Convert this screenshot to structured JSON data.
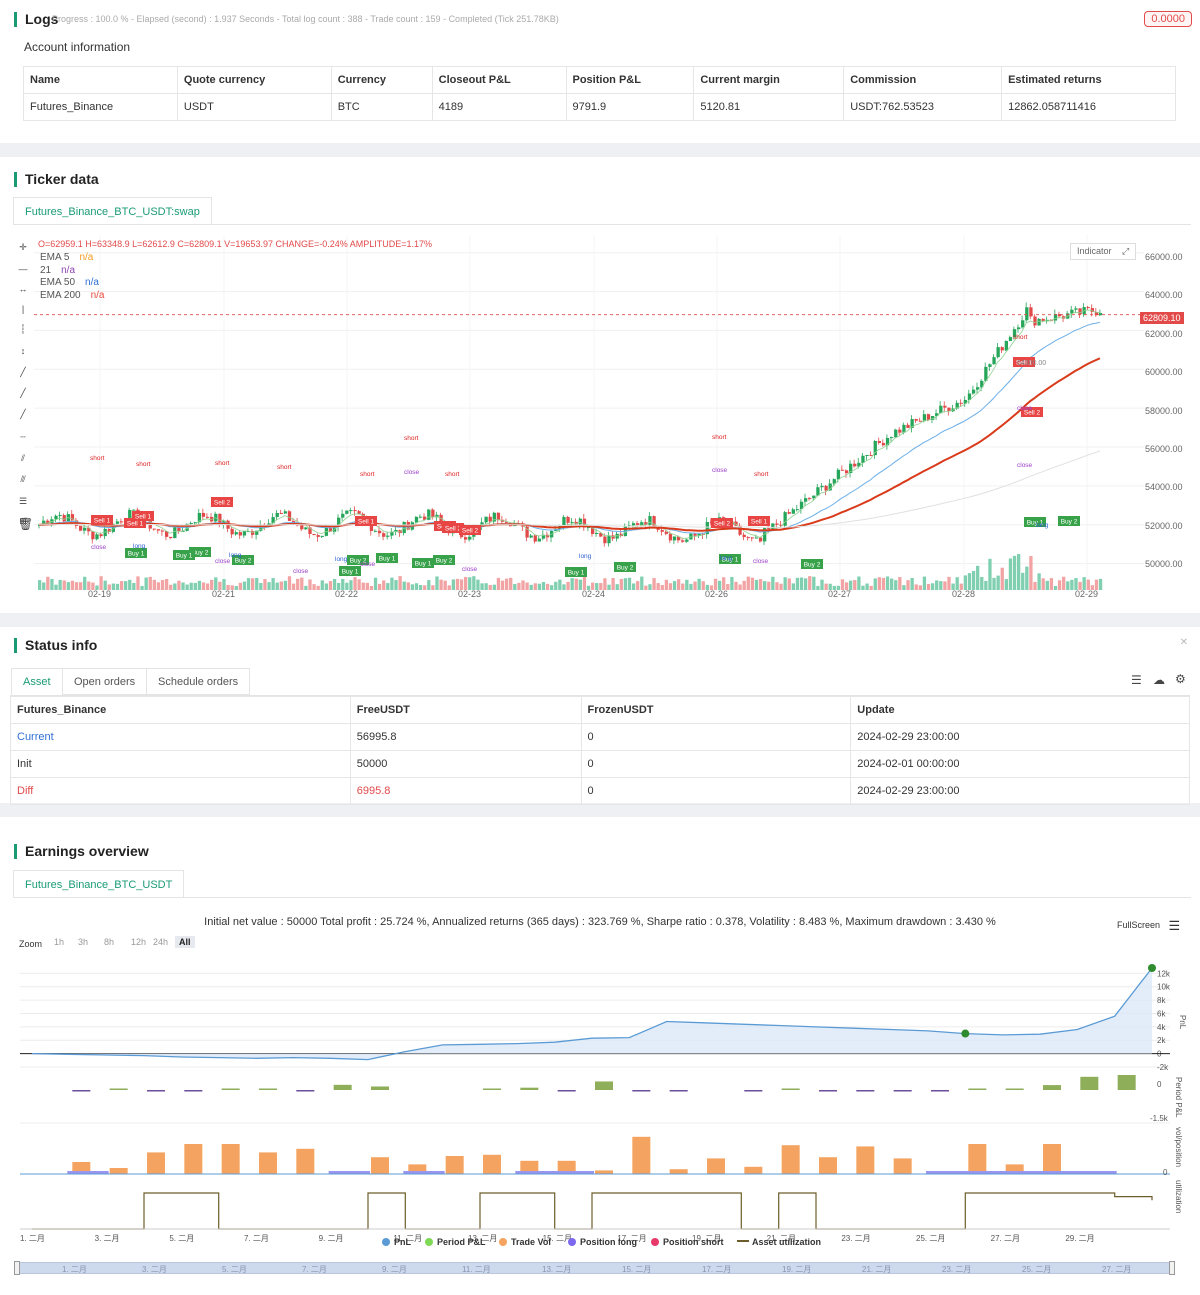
{
  "logs": {
    "title": "Logs",
    "status": "Progress : 100.0 % - Elapsed (second) : 1.937 Seconds - Total log count : 388 - Trade count : 159 - Completed (Tick 251.78KB)",
    "badge": "0.0000",
    "account_title": "Account information",
    "columns": [
      "Name",
      "Quote currency",
      "Currency",
      "Closeout P&L",
      "Position P&L",
      "Current margin",
      "Commission",
      "Estimated returns"
    ],
    "row": [
      "Futures_Binance",
      "USDT",
      "BTC",
      "4189",
      "9791.9",
      "5120.81",
      "USDT:762.53523",
      "12862.058711416"
    ]
  },
  "ticker": {
    "title": "Ticker data",
    "tab": "Futures_Binance_BTC_USDT:swap",
    "ohlc": "O=62959.1 H=63348.9 L=62612.9 C=62809.1 V=19653.97 CHANGE=-0.24% AMPLITUDE=1.17%",
    "indicators": [
      {
        "name": "EMA 5",
        "value": "n/a",
        "color": "#f29b1d"
      },
      {
        "name": "21",
        "value": "n/a",
        "color": "#8e44ad"
      },
      {
        "name": "EMA 50",
        "value": "n/a",
        "color": "#2f6fd6"
      },
      {
        "name": "EMA 200",
        "value": "n/a",
        "color": "#e74c3c"
      }
    ],
    "indicator_button": "Indicator",
    "price_axis": [
      "66000.00",
      "64000.00",
      "62000.00",
      "60000.00",
      "58000.00",
      "56000.00",
      "54000.00",
      "52000.00",
      "50000.00"
    ],
    "last_price": "62809.10",
    "peak_label": "64300.00",
    "x_axis": [
      "02-19",
      "02-21",
      "02-22",
      "02-23",
      "02-24",
      "02-26",
      "02-27",
      "02-28",
      "02-29"
    ],
    "marker_labels": {
      "short": "short",
      "long": "long",
      "close": "close",
      "sell1": "Sell 1",
      "sell2": "Sell 2",
      "buy1": "Buy 1",
      "buy2": "Buy 2",
      "one": "1"
    }
  },
  "status": {
    "title": "Status info",
    "tabs": [
      "Asset",
      "Open orders",
      "Schedule orders"
    ],
    "columns": [
      "Futures_Binance",
      "FreeUSDT",
      "FrozenUSDT",
      "Update"
    ],
    "rows": [
      [
        "Current",
        "56995.8",
        "0",
        "2024-02-29 23:00:00"
      ],
      [
        "Init",
        "50000",
        "0",
        "2024-02-01 00:00:00"
      ],
      [
        "Diff",
        "6995.8",
        "0",
        "2024-02-29 23:00:00"
      ]
    ]
  },
  "earnings": {
    "title": "Earnings overview",
    "tab": "Futures_Binance_BTC_USDT",
    "summary": "Initial net value : 50000 Total profit : 25.724 %, Annualized returns (365 days) : 323.769 %, Sharpe ratio : 0.378, Volatility : 8.483 %, Maximum drawdown : 3.430 %",
    "fullscreen": "FullScreen",
    "zoom_label": "Zoom",
    "zoom_options": [
      "1h",
      "3h",
      "8h",
      "12h",
      "24h",
      "All"
    ],
    "zoom_selected": "All",
    "pnl_axis": [
      "12k",
      "10k",
      "8k",
      "6k",
      "4k",
      "2k",
      "0",
      "-2k"
    ],
    "pnl_title": "PnL",
    "period_axis": [
      "0",
      "-1.5k"
    ],
    "period_title": "Period P&L",
    "vol_axis": [
      "0"
    ],
    "vol_title": "vol/position",
    "util_title": "utilization",
    "x_axis": [
      "1. 二月",
      "3. 二月",
      "5. 二月",
      "7. 二月",
      "9. 二月",
      "11. 二月",
      "13. 二月",
      "15. 二月",
      "17. 二月",
      "19. 二月",
      "21. 二月",
      "23. 二月",
      "25. 二月",
      "27. 二月",
      "29. 二月"
    ],
    "legend": [
      {
        "name": "PnL",
        "color": "#5b9bd5"
      },
      {
        "name": "Period P&L",
        "color": "#7ed957"
      },
      {
        "name": "Trade Vol",
        "color": "#f4a460"
      },
      {
        "name": "Position long",
        "color": "#7b68ee"
      },
      {
        "name": "Position short",
        "color": "#e8396b"
      },
      {
        "name": "Asset utilization",
        "color": "#6b5e2a"
      }
    ]
  },
  "chart_data": [
    {
      "type": "line",
      "title": "",
      "series": [
        {
          "name": "PnL",
          "values": [
            0,
            -100,
            -200,
            -300,
            -500,
            -600,
            -700,
            -600,
            -700,
            -900,
            300,
            1300,
            1400,
            1500,
            1700,
            2300,
            2400,
            4800,
            4600,
            4400,
            4200,
            4000,
            3800,
            3600,
            3400,
            3000,
            2800,
            2900,
            3600,
            5600,
            12800
          ]
        }
      ],
      "x": [
        "1. 二月",
        "",
        "3. 二月",
        "",
        "5. 二月",
        "",
        "7. 二月",
        "",
        "9. 二月",
        "",
        "11. 二月",
        "",
        "13. 二月",
        "",
        "15. 二月",
        "",
        "17. 二月",
        "",
        "19. 二月",
        "",
        "21. 二月",
        "",
        "23. 二月",
        "",
        "25. 二月",
        "",
        "27. 二月",
        "",
        "29. 二月",
        "",
        ""
      ],
      "ylim": [
        -2000,
        12500
      ]
    },
    {
      "type": "bar",
      "title": "",
      "series": [
        {
          "name": "Period P&L",
          "values": [
            0,
            -150,
            120,
            -380,
            -200,
            90,
            60,
            -300,
            1000,
            680,
            0,
            0,
            90,
            450,
            -150,
            1650,
            -150,
            -400,
            0,
            -260,
            190,
            -200,
            -280,
            -220,
            -150,
            130,
            290,
            950,
            2550,
            2900
          ]
        }
      ]
    },
    {
      "type": "bar",
      "title": "",
      "series": [
        {
          "name": "Trade Vol",
          "values": [
            0,
            10,
            5,
            18,
            25,
            25,
            18,
            21,
            0,
            14,
            8,
            15,
            16,
            11,
            11,
            3,
            31,
            4,
            13,
            6,
            24,
            14,
            23,
            13,
            0,
            25,
            8,
            25,
            0,
            0
          ]
        }
      ]
    }
  ]
}
